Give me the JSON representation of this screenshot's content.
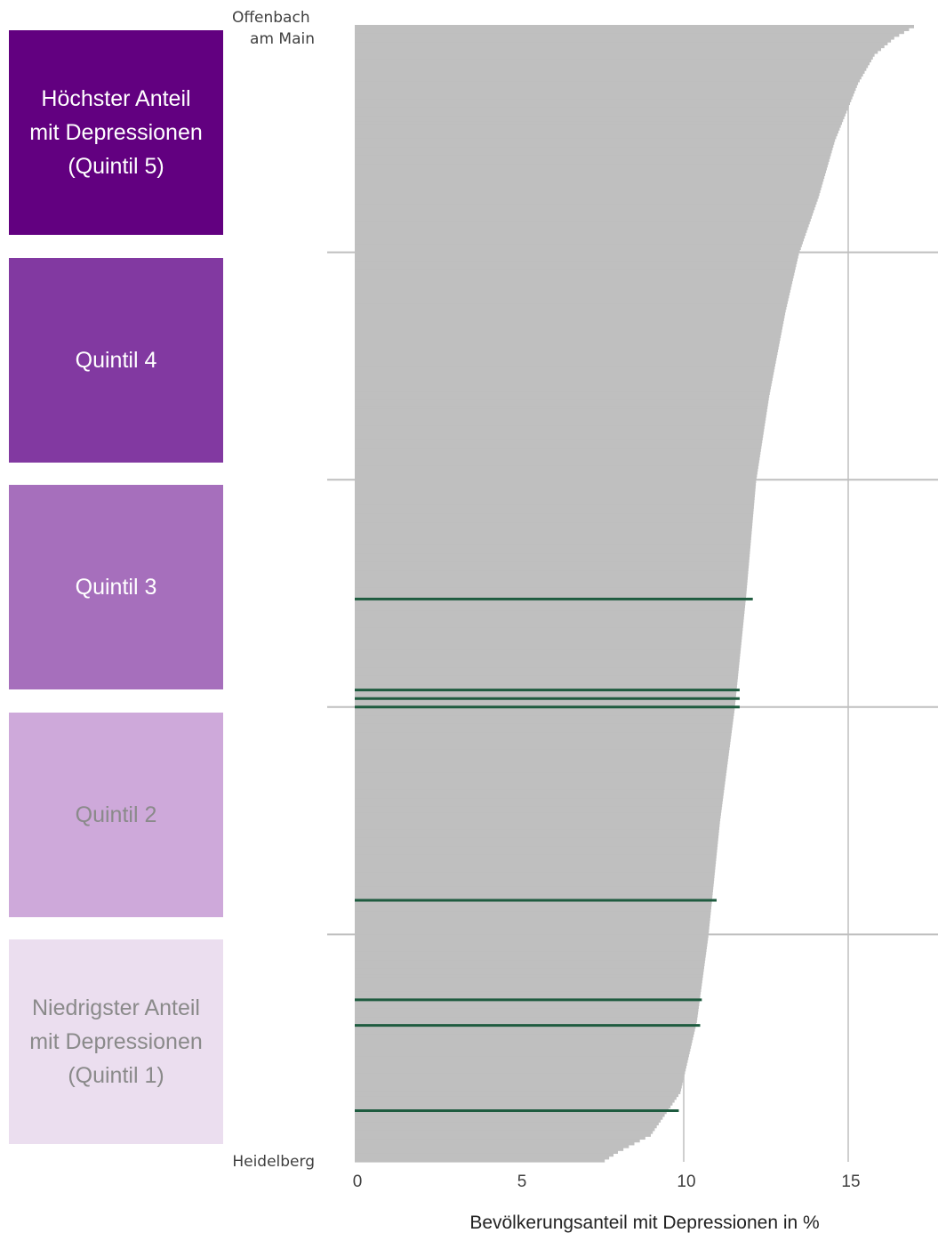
{
  "quintiles": [
    {
      "label": "Höchster Anteil\nmit Depressionen\n(Quintil 5)",
      "color": "#620080",
      "text_color": "#ffffff"
    },
    {
      "label": "Quintil 4",
      "color": "#8239a1",
      "text_color": "#ffffff"
    },
    {
      "label": "Quintil 3",
      "color": "#a66fbc",
      "text_color": "#ffffff"
    },
    {
      "label": "Quintil 2",
      "color": "#cea9da",
      "text_color": "#8a8a8a"
    },
    {
      "label": "Niedrigster Anteil\nmit Depressionen\n(Quintil 1)",
      "color": "#ebdeef",
      "text_color": "#8a8a8a"
    }
  ],
  "chart_data": {
    "type": "bar",
    "orientation": "horizontal",
    "title": "",
    "xlabel": "Bevölkerungsanteil mit Depressionen in %",
    "ylabel": "",
    "xlim": [
      0,
      17.7
    ],
    "xticks": [
      0,
      5,
      10,
      15
    ],
    "grid": true,
    "top_label": "Offenbach\nam Main",
    "bottom_label": "Heidelberg",
    "bar_color": "#bfbfbf",
    "highlight_color": "#1e5b3f",
    "n_regions": 400,
    "profile": [
      {
        "rank": 0,
        "value": 17.0
      },
      {
        "rank": 4,
        "value": 16.4
      },
      {
        "rank": 10,
        "value": 15.8
      },
      {
        "rank": 20,
        "value": 15.3
      },
      {
        "rank": 40,
        "value": 14.6
      },
      {
        "rank": 60,
        "value": 14.1
      },
      {
        "rank": 80,
        "value": 13.5
      },
      {
        "rank": 100,
        "value": 13.1
      },
      {
        "rank": 130,
        "value": 12.6
      },
      {
        "rank": 160,
        "value": 12.2
      },
      {
        "rank": 200,
        "value": 11.9
      },
      {
        "rank": 240,
        "value": 11.55
      },
      {
        "rank": 280,
        "value": 11.1
      },
      {
        "rank": 320,
        "value": 10.75
      },
      {
        "rank": 350,
        "value": 10.4
      },
      {
        "rank": 375,
        "value": 9.9
      },
      {
        "rank": 390,
        "value": 9.0
      },
      {
        "rank": 396,
        "value": 8.0
      },
      {
        "rank": 399,
        "value": 7.6
      }
    ],
    "highlighted": [
      {
        "rank": 202,
        "value": 12.1
      },
      {
        "rank": 234,
        "value": 11.7
      },
      {
        "rank": 237,
        "value": 11.7
      },
      {
        "rank": 240,
        "value": 11.7
      },
      {
        "rank": 308,
        "value": 11.0
      },
      {
        "rank": 343,
        "value": 10.55
      },
      {
        "rank": 352,
        "value": 10.5
      },
      {
        "rank": 382,
        "value": 9.85
      }
    ],
    "quintile_boundaries": [
      80,
      160,
      240,
      320
    ]
  }
}
